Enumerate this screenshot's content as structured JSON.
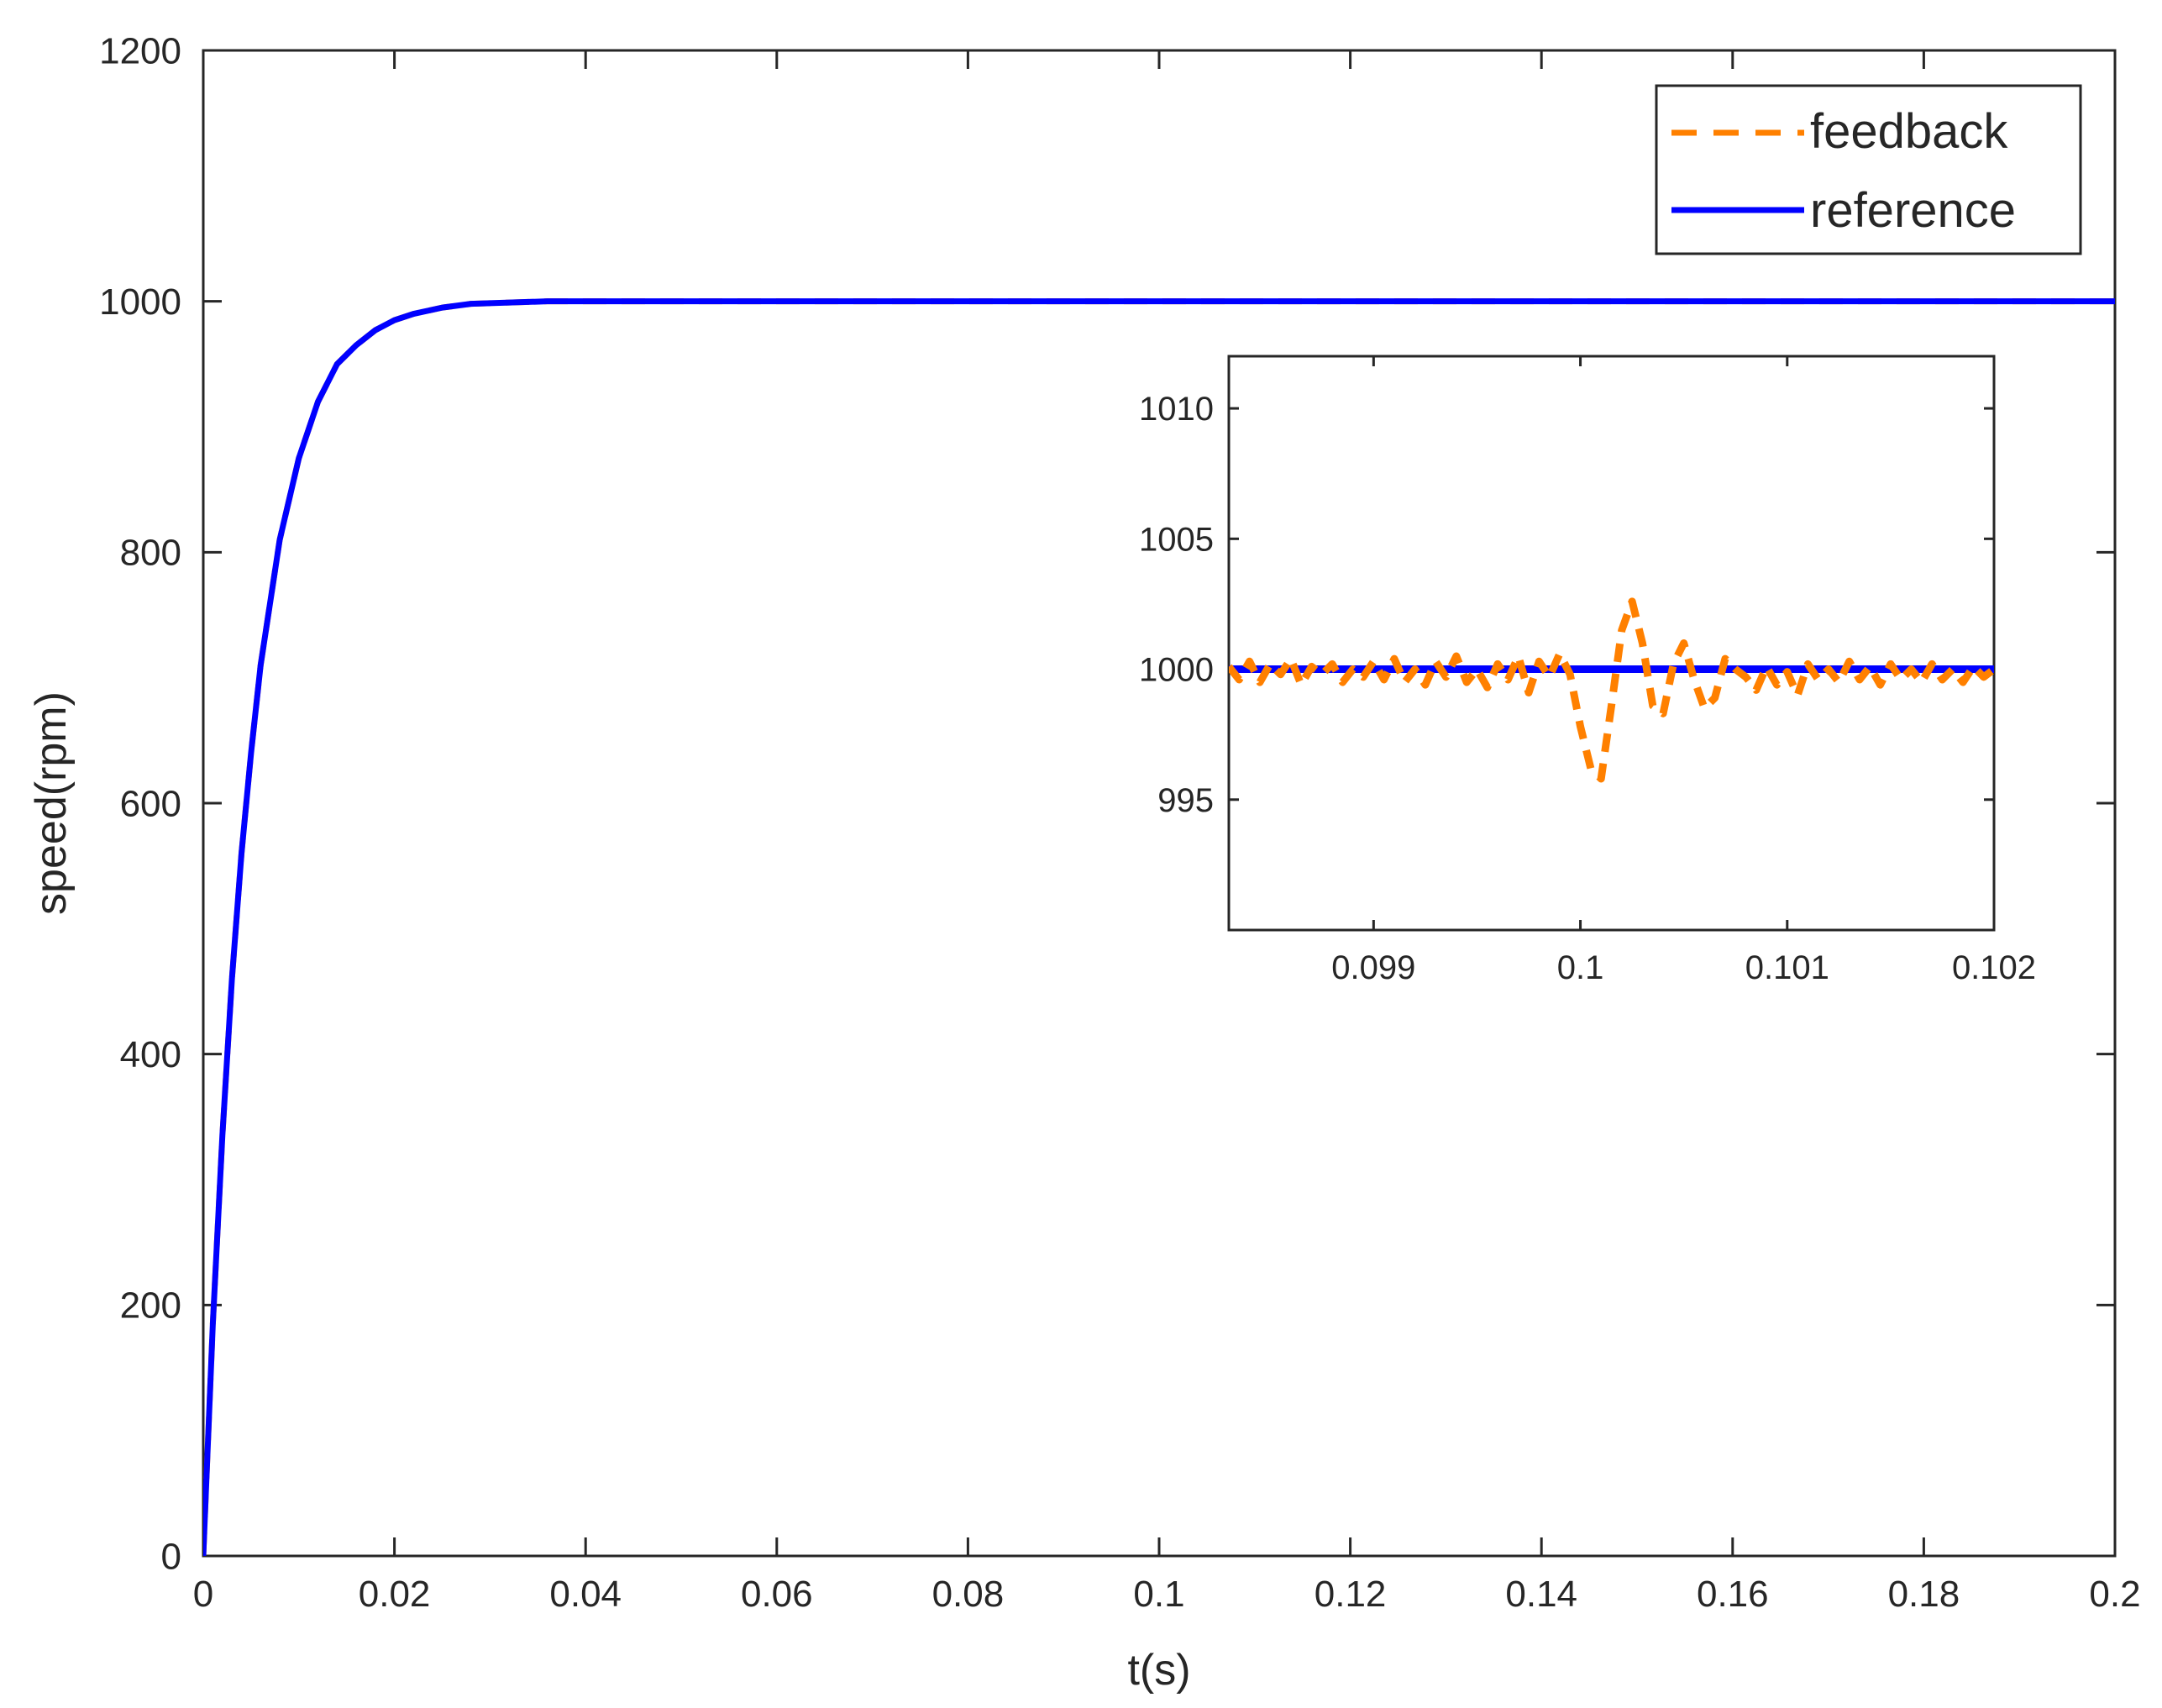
{
  "chart_data": [
    {
      "type": "line",
      "xlabel": "t(s)",
      "ylabel": "speed(rpm)",
      "xlim": [
        0,
        0.2
      ],
      "ylim": [
        0,
        1200
      ],
      "xticks": [
        0,
        0.02,
        0.04,
        0.06,
        0.08,
        0.1,
        0.12,
        0.14,
        0.16,
        0.18,
        0.2
      ],
      "xtick_labels": [
        "0",
        "0.02",
        "0.04",
        "0.06",
        "0.08",
        "0.1",
        "0.12",
        "0.14",
        "0.16",
        "0.18",
        "0.2"
      ],
      "yticks": [
        0,
        200,
        400,
        600,
        800,
        1000,
        1200
      ],
      "ytick_labels": [
        "0",
        "200",
        "400",
        "600",
        "800",
        "1000",
        "1200"
      ],
      "grid": false,
      "legend_position": "top-right",
      "series": [
        {
          "name": "reference",
          "color": "#0000ff",
          "style": "solid",
          "x": [
            0,
            0.001,
            0.002,
            0.003,
            0.004,
            0.005,
            0.006,
            0.008,
            0.01,
            0.012,
            0.014,
            0.016,
            0.018,
            0.02,
            0.022,
            0.025,
            0.028,
            0.032,
            0.036,
            0.04,
            0.05,
            0.06,
            0.08,
            0.1,
            0.12,
            0.14,
            0.16,
            0.18,
            0.2
          ],
          "values": [
            0,
            185,
            335,
            460,
            560,
            640,
            710,
            810,
            875,
            920,
            950,
            965,
            977,
            985,
            990,
            995,
            998,
            999,
            1000,
            1000,
            1000,
            1000,
            1000,
            1000,
            1000,
            1000,
            1000,
            1000,
            1000
          ]
        },
        {
          "name": "feedback",
          "color": "#ff8000",
          "style": "dashed",
          "x": [
            0,
            0.001,
            0.002,
            0.003,
            0.004,
            0.005,
            0.006,
            0.008,
            0.01,
            0.012,
            0.014,
            0.016,
            0.018,
            0.02,
            0.022,
            0.025,
            0.028,
            0.032,
            0.036,
            0.04,
            0.05,
            0.06,
            0.08,
            0.1,
            0.12,
            0.14,
            0.16,
            0.18,
            0.2
          ],
          "values": [
            0,
            185,
            335,
            460,
            560,
            640,
            710,
            810,
            875,
            920,
            950,
            965,
            977,
            985,
            990,
            995,
            998,
            999,
            1000,
            1000,
            1000,
            1000,
            1000,
            1000,
            1000,
            1000,
            1000,
            1000,
            1000
          ]
        }
      ]
    },
    {
      "type": "line",
      "xlim": [
        0.0983,
        0.102
      ],
      "ylim": [
        990,
        1012
      ],
      "xticks": [
        0.099,
        0.1,
        0.101,
        0.102
      ],
      "xtick_labels": [
        "0.099",
        "0.1",
        "0.101",
        "0.102"
      ],
      "yticks": [
        995,
        1000,
        1005,
        1010
      ],
      "ytick_labels": [
        "995",
        "1000",
        "1005",
        "1010"
      ],
      "series": [
        {
          "name": "reference",
          "color": "#0000ff",
          "style": "solid",
          "x": [
            0.0983,
            0.102
          ],
          "values": [
            1000,
            1000
          ]
        },
        {
          "name": "feedback",
          "color": "#ff8000",
          "style": "dashed",
          "x": [
            0.0983,
            0.09835,
            0.0984,
            0.09845,
            0.0985,
            0.09855,
            0.0986,
            0.09865,
            0.0987,
            0.09875,
            0.0988,
            0.09885,
            0.0989,
            0.09895,
            0.099,
            0.09905,
            0.0991,
            0.09915,
            0.0992,
            0.09925,
            0.0993,
            0.09935,
            0.0994,
            0.09945,
            0.0995,
            0.09955,
            0.0996,
            0.09965,
            0.0997,
            0.09975,
            0.0998,
            0.09985,
            0.0999,
            0.09995,
            0.1,
            0.10005,
            0.1001,
            0.10015,
            0.1002,
            0.10025,
            0.1003,
            0.10035,
            0.1004,
            0.10045,
            0.1005,
            0.10055,
            0.1006,
            0.10065,
            0.1007,
            0.10075,
            0.1008,
            0.10085,
            0.1009,
            0.10095,
            0.101,
            0.10105,
            0.1011,
            0.10115,
            0.1012,
            0.10125,
            0.1013,
            0.10135,
            0.1014,
            0.10145,
            0.1015,
            0.10155,
            0.1016,
            0.10165,
            0.1017,
            0.10175,
            0.1018,
            0.10185,
            0.1019,
            0.10195,
            0.102
          ],
          "values": [
            1000.1,
            999.6,
            1000.3,
            999.5,
            1000.2,
            999.8,
            1000.4,
            999.4,
            1000.1,
            999.8,
            1000.2,
            999.5,
            1000.0,
            999.7,
            1000.3,
            999.6,
            1000.4,
            999.5,
            1000.0,
            999.4,
            1000.3,
            999.7,
            1000.5,
            999.5,
            1000.0,
            999.3,
            1000.2,
            999.6,
            1000.5,
            999.1,
            1000.3,
            999.7,
            1000.6,
            999.8,
            997.8,
            996.2,
            995.8,
            998.6,
            1001.5,
            1002.6,
            1001.0,
            998.6,
            998.3,
            1000.2,
            1001.0,
            999.6,
            998.5,
            998.9,
            1000.4,
            1000.0,
            999.7,
            999.2,
            1000.1,
            999.4,
            999.9,
            999.0,
            1000.2,
            999.6,
            1000.0,
            999.5,
            1000.3,
            999.6,
            1000.1,
            999.4,
            1000.2,
            999.6,
            1000.0,
            999.5,
            1000.2,
            999.6,
            1000.0,
            999.5,
            1000.1,
            999.7,
            1000.0
          ]
        }
      ]
    }
  ]
}
